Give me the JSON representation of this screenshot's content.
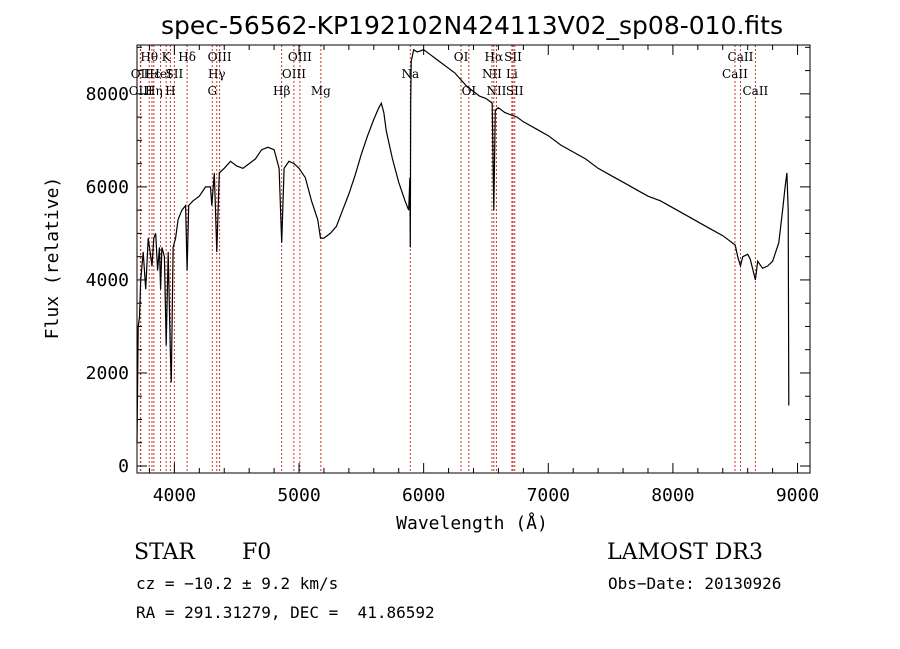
{
  "chart_data": {
    "type": "line",
    "title": "spec-56562-KP192102N424113V02_sp08-010.fits",
    "xlabel": "Wavelength (Å)",
    "ylabel": "Flux (relative)",
    "xlim": [
      3700,
      9100
    ],
    "ylim": [
      -150,
      9050
    ],
    "x_ticks": [
      4000,
      5000,
      6000,
      7000,
      8000,
      9000
    ],
    "y_ticks": [
      0,
      2000,
      4000,
      6000,
      8000
    ],
    "series": [
      {
        "name": "spectrum",
        "points": [
          [
            3700,
            500
          ],
          [
            3710,
            3000
          ],
          [
            3720,
            3200
          ],
          [
            3730,
            4000
          ],
          [
            3750,
            4600
          ],
          [
            3770,
            3800
          ],
          [
            3790,
            4900
          ],
          [
            3800,
            4700
          ],
          [
            3820,
            4300
          ],
          [
            3835,
            4900
          ],
          [
            3850,
            5000
          ],
          [
            3865,
            4200
          ],
          [
            3880,
            4700
          ],
          [
            3889,
            3800
          ],
          [
            3900,
            4700
          ],
          [
            3920,
            4500
          ],
          [
            3934,
            2600
          ],
          [
            3950,
            4600
          ],
          [
            3968,
            2400
          ],
          [
            3975,
            1800
          ],
          [
            3990,
            4700
          ],
          [
            4010,
            4900
          ],
          [
            4030,
            5300
          ],
          [
            4060,
            5500
          ],
          [
            4090,
            5600
          ],
          [
            4102,
            4200
          ],
          [
            4115,
            5600
          ],
          [
            4150,
            5700
          ],
          [
            4200,
            5800
          ],
          [
            4250,
            6000
          ],
          [
            4290,
            6000
          ],
          [
            4300,
            5600
          ],
          [
            4320,
            6300
          ],
          [
            4340,
            4600
          ],
          [
            4360,
            6300
          ],
          [
            4400,
            6400
          ],
          [
            4450,
            6550
          ],
          [
            4500,
            6450
          ],
          [
            4550,
            6400
          ],
          [
            4600,
            6500
          ],
          [
            4650,
            6600
          ],
          [
            4700,
            6800
          ],
          [
            4750,
            6850
          ],
          [
            4800,
            6800
          ],
          [
            4840,
            6400
          ],
          [
            4861,
            4800
          ],
          [
            4880,
            6400
          ],
          [
            4920,
            6550
          ],
          [
            4960,
            6500
          ],
          [
            5000,
            6400
          ],
          [
            5050,
            6200
          ],
          [
            5100,
            5700
          ],
          [
            5150,
            5300
          ],
          [
            5172,
            4900
          ],
          [
            5200,
            4900
          ],
          [
            5250,
            5000
          ],
          [
            5300,
            5150
          ],
          [
            5350,
            5500
          ],
          [
            5400,
            5850
          ],
          [
            5450,
            6250
          ],
          [
            5500,
            6700
          ],
          [
            5550,
            7100
          ],
          [
            5600,
            7450
          ],
          [
            5640,
            7700
          ],
          [
            5660,
            7800
          ],
          [
            5680,
            7600
          ],
          [
            5700,
            7200
          ],
          [
            5750,
            6600
          ],
          [
            5800,
            6100
          ],
          [
            5850,
            5700
          ],
          [
            5880,
            5500
          ],
          [
            5890,
            6200
          ],
          [
            5893,
            4700
          ],
          [
            5896,
            7800
          ],
          [
            5900,
            8700
          ],
          [
            5920,
            8950
          ],
          [
            5950,
            8900
          ],
          [
            6000,
            8950
          ],
          [
            6050,
            8850
          ],
          [
            6100,
            8750
          ],
          [
            6150,
            8650
          ],
          [
            6200,
            8550
          ],
          [
            6250,
            8450
          ],
          [
            6300,
            8300
          ],
          [
            6350,
            8150
          ],
          [
            6400,
            8050
          ],
          [
            6450,
            7950
          ],
          [
            6500,
            7900
          ],
          [
            6550,
            7800
          ],
          [
            6563,
            5500
          ],
          [
            6575,
            7650
          ],
          [
            6600,
            7700
          ],
          [
            6650,
            7600
          ],
          [
            6700,
            7550
          ],
          [
            6750,
            7500
          ],
          [
            6800,
            7400
          ],
          [
            6900,
            7250
          ],
          [
            7000,
            7100
          ],
          [
            7100,
            6900
          ],
          [
            7200,
            6750
          ],
          [
            7300,
            6600
          ],
          [
            7400,
            6400
          ],
          [
            7500,
            6250
          ],
          [
            7600,
            6100
          ],
          [
            7700,
            5950
          ],
          [
            7800,
            5800
          ],
          [
            7900,
            5700
          ],
          [
            8000,
            5550
          ],
          [
            8100,
            5400
          ],
          [
            8200,
            5250
          ],
          [
            8300,
            5100
          ],
          [
            8400,
            4950
          ],
          [
            8500,
            4750
          ],
          [
            8520,
            4500
          ],
          [
            8542,
            4300
          ],
          [
            8560,
            4500
          ],
          [
            8600,
            4550
          ],
          [
            8620,
            4450
          ],
          [
            8662,
            4000
          ],
          [
            8680,
            4400
          ],
          [
            8720,
            4250
          ],
          [
            8760,
            4300
          ],
          [
            8800,
            4400
          ],
          [
            8850,
            4800
          ],
          [
            8880,
            5500
          ],
          [
            8900,
            6000
          ],
          [
            8915,
            6300
          ],
          [
            8925,
            5500
          ],
          [
            8930,
            1300
          ]
        ]
      }
    ],
    "spectral_lines": [
      {
        "label": "Hθ",
        "wavelength": 3798,
        "row": 0
      },
      {
        "label": "OII",
        "wavelength": 3727,
        "row": 1
      },
      {
        "label": "OIII",
        "wavelength": 3730,
        "row": 2
      },
      {
        "label": "Hε",
        "wavelength": 3820,
        "row": 1
      },
      {
        "label": "Hη",
        "wavelength": 3835,
        "row": 2
      },
      {
        "label": "K",
        "wavelength": 3934,
        "row": 0
      },
      {
        "label": "HeI",
        "wavelength": 3889,
        "row": 1
      },
      {
        "label": "SII",
        "wavelength": 4000,
        "row": 1
      },
      {
        "label": "H",
        "wavelength": 3968,
        "row": 2
      },
      {
        "label": "Hδ",
        "wavelength": 4102,
        "row": 0
      },
      {
        "label": "OIII",
        "wavelength": 4363,
        "row": 0
      },
      {
        "label": "Hγ",
        "wavelength": 4340,
        "row": 1
      },
      {
        "label": "G",
        "wavelength": 4304,
        "row": 2
      },
      {
        "label": "OIII",
        "wavelength": 5007,
        "row": 0
      },
      {
        "label": "OIII",
        "wavelength": 4959,
        "row": 1
      },
      {
        "label": "Hβ",
        "wavelength": 4861,
        "row": 2
      },
      {
        "label": "Mg",
        "wavelength": 5175,
        "row": 2
      },
      {
        "label": "Na",
        "wavelength": 5893,
        "row": 1
      },
      {
        "label": "OI",
        "wavelength": 6300,
        "row": 0
      },
      {
        "label": "OI",
        "wavelength": 6363,
        "row": 2
      },
      {
        "label": "Hα",
        "wavelength": 6563,
        "row": 0
      },
      {
        "label": "NII",
        "wavelength": 6548,
        "row": 1
      },
      {
        "label": "NII",
        "wavelength": 6584,
        "row": 2
      },
      {
        "label": "SII",
        "wavelength": 6717,
        "row": 0
      },
      {
        "label": "Li",
        "wavelength": 6708,
        "row": 1
      },
      {
        "label": "SII",
        "wavelength": 6731,
        "row": 2
      },
      {
        "label": "CaII",
        "wavelength": 8542,
        "row": 0
      },
      {
        "label": "CaII",
        "wavelength": 8498,
        "row": 1
      },
      {
        "label": "CaII",
        "wavelength": 8662,
        "row": 2
      }
    ]
  },
  "info": {
    "classification": "STAR",
    "subclass": "F0",
    "survey": "LAMOST DR3",
    "redshift": "cz = −10.2 ± 9.2 km/s",
    "obs_date": "Obs−Date: 20130926",
    "coords": "RA = 291.31279, DEC =  41.86592"
  },
  "colors": {
    "spectrum": "#000000",
    "line_marker": "#c0392b",
    "axis": "#000000"
  }
}
